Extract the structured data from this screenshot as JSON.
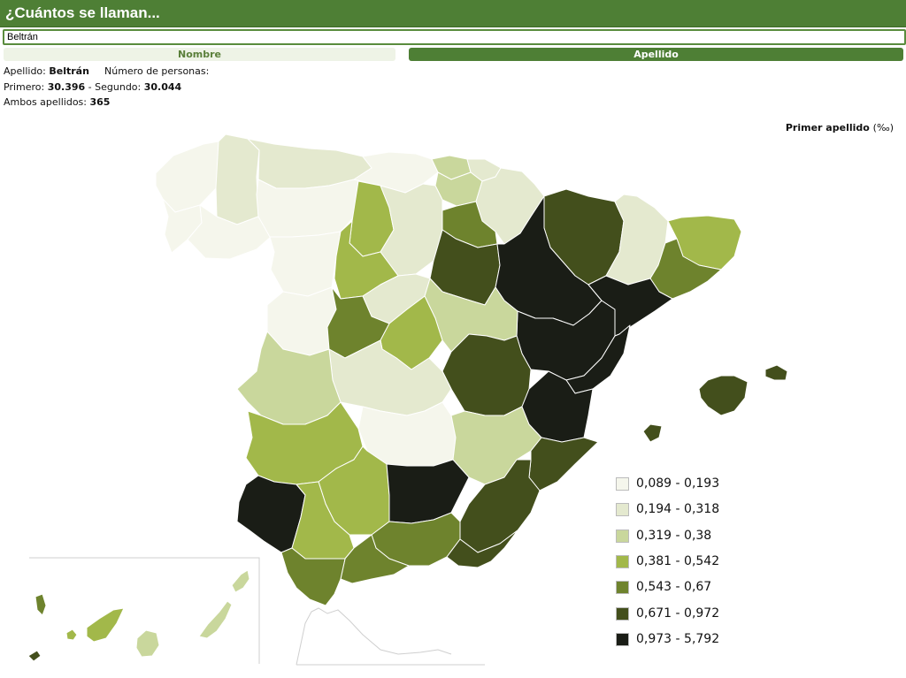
{
  "header": {
    "title": "¿Cuántos se llaman..."
  },
  "search": {
    "value": "Beltrán"
  },
  "tabs": [
    {
      "label": "Nombre",
      "active": false
    },
    {
      "label": "Apellido",
      "active": true
    }
  ],
  "info": {
    "surname_label": "Apellido:",
    "surname_value": "Beltrán",
    "persons_label": "Número de personas:",
    "first_label": "Primero:",
    "first_value": "30.396",
    "separator": " - ",
    "second_label": "Segundo:",
    "second_value": "30.044",
    "both_label": "Ambos apellidos:",
    "both_value": "365"
  },
  "map": {
    "title": "Primer apellido",
    "unit": "(‰)"
  },
  "legend": [
    {
      "label": "0,089 - 0,193",
      "color": "#f5f6ec"
    },
    {
      "label": "0,194 - 0,318",
      "color": "#e4e9cf"
    },
    {
      "label": "0,319 - 0,38",
      "color": "#c9d79c"
    },
    {
      "label": "0,381 - 0,542",
      "color": "#a2b84a"
    },
    {
      "label": "0,543 - 0,67",
      "color": "#6e832d"
    },
    {
      "label": "0,671 - 0,972",
      "color": "#434f1c"
    },
    {
      "label": "0,973 - 5,792",
      "color": "#1a1d16"
    }
  ],
  "colors": {
    "header_bg": "#4e7f35",
    "tab_inactive_bg": "#eef3e6",
    "border": "#5a8c3d"
  }
}
